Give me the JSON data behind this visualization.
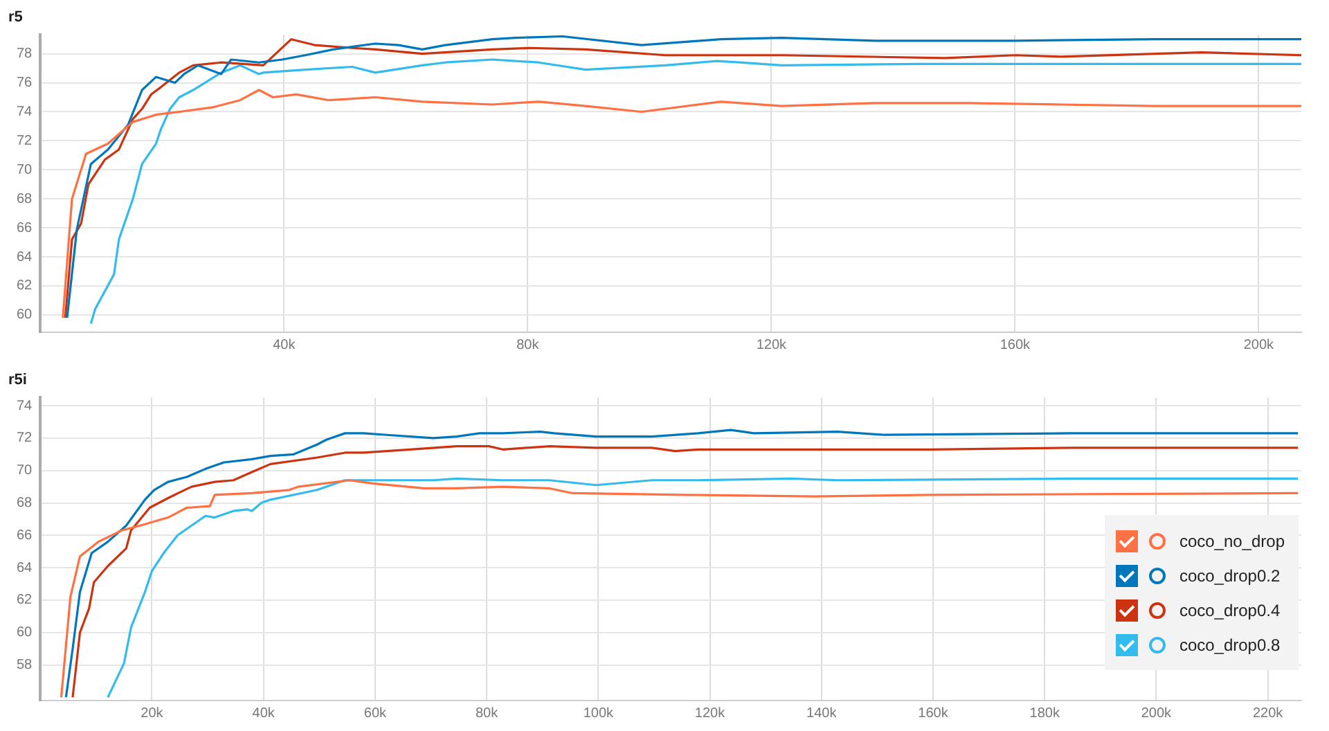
{
  "chart_data": [
    {
      "type": "line",
      "title": "r5",
      "xlim": [
        0,
        207000
      ],
      "ylim": [
        58.8,
        79.3
      ],
      "xticks": [
        {
          "value": 40000,
          "label": "40k"
        },
        {
          "value": 80000,
          "label": "80k"
        },
        {
          "value": 120000,
          "label": "120k"
        },
        {
          "value": 160000,
          "label": "160k"
        },
        {
          "value": 200000,
          "label": "200k"
        }
      ],
      "yticks": [
        60,
        62,
        64,
        66,
        68,
        70,
        72,
        74,
        76,
        78
      ],
      "grid": true,
      "marker": "none",
      "line_style": "solid",
      "series": [
        {
          "color": "#ff7043",
          "x": [
            3700,
            5200,
            7500,
            11100,
            15200,
            19000,
            22800,
            28200,
            32800,
            35900,
            38200,
            42000,
            47400,
            55000,
            62700,
            74200,
            81800,
            89500,
            98700,
            111700,
            121700,
            137000,
            152300,
            167600,
            183000,
            207000
          ],
          "values": [
            59.8,
            68.0,
            71.1,
            71.8,
            73.3,
            73.8,
            74.0,
            74.3,
            74.8,
            75.5,
            75.0,
            75.2,
            74.8,
            75.0,
            74.7,
            74.5,
            74.7,
            74.4,
            74.0,
            74.7,
            74.4,
            74.6,
            74.6,
            74.5,
            74.4,
            74.4
          ]
        },
        {
          "color": "#0077bb",
          "x": [
            4400,
            6000,
            8300,
            11100,
            14400,
            16700,
            19000,
            22100,
            23600,
            25900,
            29700,
            31300,
            35900,
            39700,
            43500,
            48100,
            55000,
            58800,
            62700,
            66500,
            74200,
            78000,
            85700,
            98700,
            111700,
            121700,
            137000,
            160000,
            183000,
            207000
          ],
          "values": [
            59.8,
            65.9,
            70.4,
            71.4,
            73.1,
            75.5,
            76.4,
            76.0,
            76.6,
            77.2,
            76.6,
            77.6,
            77.4,
            77.6,
            77.9,
            78.3,
            78.7,
            78.6,
            78.3,
            78.6,
            79.0,
            79.1,
            79.2,
            78.6,
            79.0,
            79.1,
            78.9,
            78.9,
            79.0,
            79.0
          ]
        },
        {
          "color": "#cc3311",
          "x": [
            4100,
            5200,
            6700,
            7900,
            10600,
            12900,
            15200,
            16700,
            18200,
            19800,
            22800,
            25100,
            29700,
            36600,
            41200,
            45000,
            51200,
            55000,
            62700,
            74200,
            80300,
            89500,
            102600,
            121700,
            148500,
            160000,
            167600,
            190600,
            207000
          ],
          "values": [
            59.8,
            65.2,
            66.3,
            69.0,
            70.7,
            71.4,
            73.5,
            74.2,
            75.2,
            75.7,
            76.7,
            77.2,
            77.4,
            77.2,
            79.0,
            78.6,
            78.4,
            78.3,
            78.0,
            78.3,
            78.4,
            78.3,
            77.9,
            77.9,
            77.7,
            77.9,
            77.8,
            78.1,
            77.9
          ]
        },
        {
          "color": "#33bbee",
          "x": [
            8300,
            9000,
            12100,
            12900,
            15200,
            16700,
            19000,
            19800,
            21300,
            22800,
            25100,
            29700,
            32800,
            35900,
            36600,
            43500,
            51200,
            55000,
            62700,
            66500,
            74200,
            81800,
            89500,
            102600,
            111000,
            114800,
            121700,
            144700,
            167600,
            207000
          ],
          "values": [
            59.4,
            60.4,
            62.8,
            65.2,
            68.0,
            70.4,
            71.8,
            72.8,
            74.2,
            75.0,
            75.5,
            76.7,
            77.2,
            76.6,
            76.7,
            76.9,
            77.1,
            76.7,
            77.2,
            77.4,
            77.6,
            77.4,
            76.9,
            77.2,
            77.5,
            77.4,
            77.2,
            77.3,
            77.3,
            77.3
          ]
        }
      ]
    },
    {
      "type": "line",
      "title": "r5i",
      "xlim": [
        0,
        226000
      ],
      "ylim": [
        55.8,
        74.5
      ],
      "xticks": [
        {
          "value": 20000,
          "label": "20k"
        },
        {
          "value": 40000,
          "label": "40k"
        },
        {
          "value": 60000,
          "label": "60k"
        },
        {
          "value": 80000,
          "label": "80k"
        },
        {
          "value": 100000,
          "label": "100k"
        },
        {
          "value": 120000,
          "label": "120k"
        },
        {
          "value": 140000,
          "label": "140k"
        },
        {
          "value": 160000,
          "label": "160k"
        },
        {
          "value": 180000,
          "label": "180k"
        },
        {
          "value": 200000,
          "label": "200k"
        },
        {
          "value": 220000,
          "label": "220k"
        }
      ],
      "yticks": [
        58,
        60,
        62,
        64,
        66,
        68,
        70,
        72,
        74
      ],
      "grid": true,
      "legend": "bottom right",
      "marker": "none",
      "line_style": "solid",
      "series": [
        {
          "name": "coco_no_drop",
          "color": "#ff7043",
          "x": [
            3750,
            5400,
            7100,
            10400,
            14600,
            17900,
            22900,
            26250,
            30400,
            31250,
            37900,
            44600,
            46250,
            55400,
            59600,
            68750,
            74600,
            82900,
            91250,
            95400,
            115400,
            138750,
            159600,
            225400
          ],
          "values": [
            56.0,
            62.2,
            64.7,
            65.6,
            66.3,
            66.6,
            67.1,
            67.7,
            67.8,
            68.5,
            68.6,
            68.8,
            69.0,
            69.4,
            69.2,
            68.9,
            68.9,
            69.0,
            68.9,
            68.6,
            68.5,
            68.4,
            68.5,
            68.6
          ]
        },
        {
          "name": "coco_drop0.2",
          "color": "#0077bb",
          "x": [
            4600,
            5800,
            7100,
            9200,
            12100,
            15400,
            18750,
            20400,
            22900,
            26250,
            29600,
            32900,
            37900,
            41250,
            45400,
            49600,
            51250,
            54600,
            57900,
            62100,
            70400,
            74600,
            78750,
            82900,
            89600,
            92100,
            99600,
            109600,
            117900,
            123750,
            127900,
            142900,
            151250,
            184600,
            225400
          ],
          "values": [
            56.0,
            59.0,
            62.5,
            64.9,
            65.6,
            66.6,
            68.2,
            68.8,
            69.3,
            69.6,
            70.1,
            70.5,
            70.7,
            70.9,
            71.0,
            71.6,
            71.9,
            72.3,
            72.3,
            72.2,
            72.0,
            72.1,
            72.3,
            72.3,
            72.4,
            72.3,
            72.1,
            72.1,
            72.3,
            72.5,
            72.3,
            72.4,
            72.2,
            72.3,
            72.3
          ]
        },
        {
          "name": "coco_drop0.4",
          "color": "#cc3311",
          "x": [
            5800,
            7100,
            8750,
            9600,
            12100,
            15400,
            16250,
            19600,
            22900,
            27100,
            31250,
            34600,
            37900,
            41250,
            49600,
            54600,
            57900,
            66250,
            74600,
            80400,
            82900,
            91250,
            99600,
            109600,
            113750,
            117900,
            138750,
            159600,
            184600,
            225400
          ],
          "values": [
            56.0,
            60.0,
            61.5,
            63.1,
            64.1,
            65.2,
            66.3,
            67.7,
            68.3,
            69.0,
            69.3,
            69.4,
            69.9,
            70.4,
            70.8,
            71.1,
            71.1,
            71.3,
            71.5,
            71.5,
            71.3,
            71.5,
            71.4,
            71.4,
            71.2,
            71.3,
            71.3,
            71.3,
            71.4,
            71.4
          ]
        },
        {
          "name": "coco_drop0.8",
          "color": "#33bbee",
          "x": [
            12100,
            15000,
            16250,
            18750,
            20000,
            22100,
            24600,
            27100,
            29600,
            31250,
            34600,
            37100,
            37900,
            39600,
            41250,
            49600,
            54600,
            62100,
            70400,
            74600,
            82900,
            91250,
            99600,
            109600,
            117900,
            134600,
            142900,
            184600,
            225400
          ],
          "values": [
            56.0,
            58.1,
            60.3,
            62.5,
            63.8,
            64.9,
            66.0,
            66.6,
            67.2,
            67.1,
            67.5,
            67.6,
            67.5,
            68.0,
            68.2,
            68.8,
            69.4,
            69.4,
            69.4,
            69.5,
            69.4,
            69.4,
            69.1,
            69.4,
            69.4,
            69.5,
            69.4,
            69.5,
            69.5
          ]
        }
      ]
    }
  ]
}
